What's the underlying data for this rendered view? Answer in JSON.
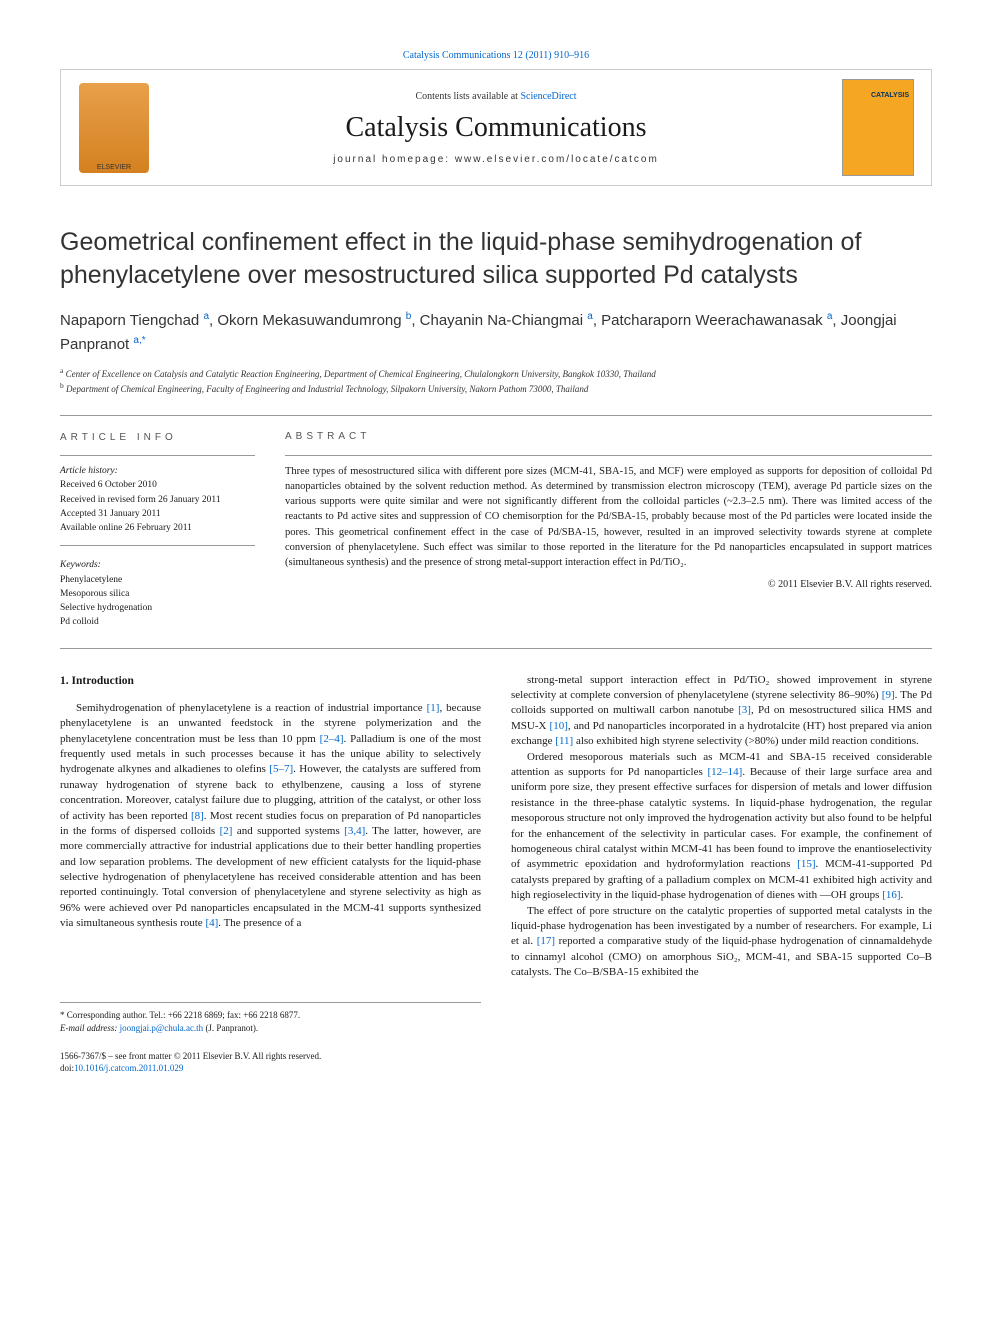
{
  "top_link": "Catalysis Communications 12 (2011) 910–916",
  "header": {
    "contents_prefix": "Contents lists available at ",
    "contents_link": "ScienceDirect",
    "journal_name": "Catalysis Communications",
    "homepage_prefix": "journal homepage: ",
    "homepage_url": "www.elsevier.com/locate/catcom"
  },
  "title": "Geometrical confinement effect in the liquid-phase semihydrogenation of phenylacetylene over mesostructured silica supported Pd catalysts",
  "authors_html": "Napaporn Tiengchad <sup>a</sup>, Okorn Mekasuwandumrong <sup>b</sup>, Chayanin Na-Chiangmai <sup>a</sup>, Patcharaporn Weerachawanasak <sup>a</sup>, Joongjai Panpranot <sup>a,*</sup>",
  "affiliations": {
    "a": "Center of Excellence on Catalysis and Catalytic Reaction Engineering, Department of Chemical Engineering, Chulalongkorn University, Bangkok 10330, Thailand",
    "b": "Department of Chemical Engineering, Faculty of Engineering and Industrial Technology, Silpakorn University, Nakorn Pathom 73000, Thailand"
  },
  "article_info": {
    "heading": "ARTICLE INFO",
    "history_label": "Article history:",
    "received": "Received 6 October 2010",
    "revised": "Received in revised form 26 January 2011",
    "accepted": "Accepted 31 January 2011",
    "online": "Available online 26 February 2011",
    "keywords_label": "Keywords:",
    "keywords": [
      "Phenylacetylene",
      "Mesoporous silica",
      "Selective hydrogenation",
      "Pd colloid"
    ]
  },
  "abstract": {
    "heading": "ABSTRACT",
    "text": "Three types of mesostructured silica with different pore sizes (MCM-41, SBA-15, and MCF) were employed as supports for deposition of colloidal Pd nanoparticles obtained by the solvent reduction method. As determined by transmission electron microscopy (TEM), average Pd particle sizes on the various supports were quite similar and were not significantly different from the colloidal particles (~2.3–2.5 nm). There was limited access of the reactants to Pd active sites and suppression of CO chemisorption for the Pd/SBA-15, probably because most of the Pd particles were located inside the pores. This geometrical confinement effect in the case of Pd/SBA-15, however, resulted in an improved selectivity towards styrene at complete conversion of phenylacetylene. Such effect was similar to those reported in the literature for the Pd nanoparticles encapsulated in support matrices (simultaneous synthesis) and the presence of strong metal-support interaction effect in Pd/TiO₂.",
    "copyright": "© 2011 Elsevier B.V. All rights reserved."
  },
  "intro": {
    "heading": "1. Introduction",
    "col1_p1_html": "Semihydrogenation of phenylacetylene is a reaction of industrial importance <a class='ref-link'>[1]</a>, because phenylacetylene is an unwanted feedstock in the styrene polymerization and the phenylacetylene concentration must be less than 10 ppm <a class='ref-link'>[2–4]</a>. Palladium is one of the most frequently used metals in such processes because it has the unique ability to selectively hydrogenate alkynes and alkadienes to olefins <a class='ref-link'>[5–7]</a>. However, the catalysts are suffered from runaway hydrogenation of styrene back to ethylbenzene, causing a loss of styrene concentration. Moreover, catalyst failure due to plugging, attrition of the catalyst, or other loss of activity has been reported <a class='ref-link'>[8]</a>. Most recent studies focus on preparation of Pd nanoparticles in the forms of dispersed colloids <a class='ref-link'>[2]</a> and supported systems <a class='ref-link'>[3,4]</a>. The latter, however, are more commercially attractive for industrial applications due to their better handling properties and low separation problems. The development of new efficient catalysts for the liquid-phase selective hydrogenation of phenylacetylene has received considerable attention and has been reported continuingly. Total conversion of phenylacetylene and styrene selectivity as high as 96% were achieved over Pd nanoparticles encapsulated in the MCM-41 supports synthesized via simultaneous synthesis route <a class='ref-link'>[4]</a>. The presence of a",
    "col2_p1_html": "strong-metal support interaction effect in Pd/TiO₂ showed improvement in styrene selectivity at complete conversion of phenylacetylene (styrene selectivity 86–90%) <a class='ref-link'>[9]</a>. The Pd colloids supported on multiwall carbon nanotube <a class='ref-link'>[3]</a>, Pd on mesostructured silica HMS and MSU-X <a class='ref-link'>[10]</a>, and Pd nanoparticles incorporated in a hydrotalcite (HT) host prepared via anion exchange <a class='ref-link'>[11]</a> also exhibited high styrene selectivity (>80%) under mild reaction conditions.",
    "col2_p2_html": "Ordered mesoporous materials such as MCM-41 and SBA-15 received considerable attention as supports for Pd nanoparticles <a class='ref-link'>[12–14]</a>. Because of their large surface area and uniform pore size, they present effective surfaces for dispersion of metals and lower diffusion resistance in the three-phase catalytic systems. In liquid-phase hydrogenation, the regular mesoporous structure not only improved the hydrogenation activity but also found to be helpful for the enhancement of the selectivity in particular cases. For example, the confinement of homogeneous chiral catalyst within MCM-41 has been found to improve the enantioselectivity of asymmetric epoxidation and hydroformylation reactions <a class='ref-link'>[15]</a>. MCM-41-supported Pd catalysts prepared by grafting of a palladium complex on MCM-41 exhibited high activity and high regioselectivity in the liquid-phase hydrogenation of dienes with —OH groups <a class='ref-link'>[16]</a>.",
    "col2_p3_html": "The effect of pore structure on the catalytic properties of supported metal catalysts in the liquid-phase hydrogenation has been investigated by a number of researchers. For example, Li et al. <a class='ref-link'>[17]</a> reported a comparative study of the liquid-phase hydrogenation of cinnamaldehyde to cinnamyl alcohol (CMO) on amorphous SiO₂, MCM-41, and SBA-15 supported Co–B catalysts. The Co–B/SBA-15 exhibited the"
  },
  "footer": {
    "corresponding": "* Corresponding author. Tel.: +66 2218 6869; fax: +66 2218 6877.",
    "email_label": "E-mail address:",
    "email": "joongjai.p@chula.ac.th",
    "email_person": "(J. Panpranot).",
    "issn": "1566-7367/$ – see front matter © 2011 Elsevier B.V. All rights reserved.",
    "doi_prefix": "doi:",
    "doi": "10.1016/j.catcom.2011.01.029"
  },
  "colors": {
    "link": "#0066cc",
    "text": "#1a1a1a",
    "border": "#999999",
    "logo_orange": "#e8a04a"
  }
}
